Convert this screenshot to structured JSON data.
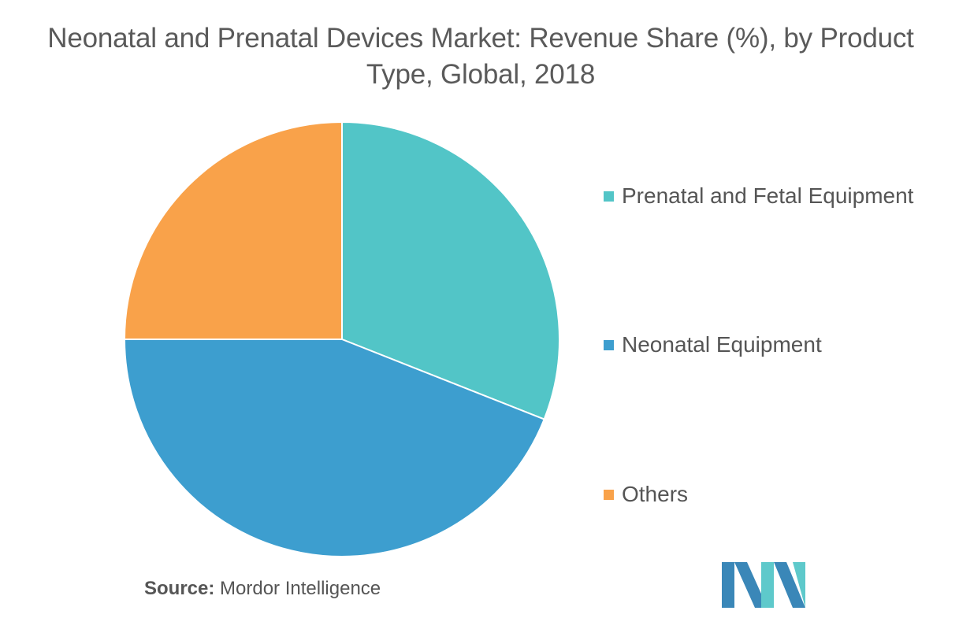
{
  "chart_data": {
    "type": "pie",
    "title": "Neonatal and Prenatal Devices Market: Revenue Share (%), by Product Type, Global, 2018",
    "categories": [
      "Prenatal and Fetal Equipment",
      "Neonatal Equipment",
      "Others"
    ],
    "values": [
      31,
      44,
      25
    ],
    "colors": [
      "#52c5c7",
      "#3d9ecf",
      "#f9a24a"
    ],
    "legend": "right"
  },
  "source": {
    "label": "Source:",
    "value": "Mordor Intelligence"
  },
  "logo": {
    "icon": "mordor-intelligence-logo-icon",
    "colors": [
      "#3a87b8",
      "#5ec9cb"
    ]
  }
}
